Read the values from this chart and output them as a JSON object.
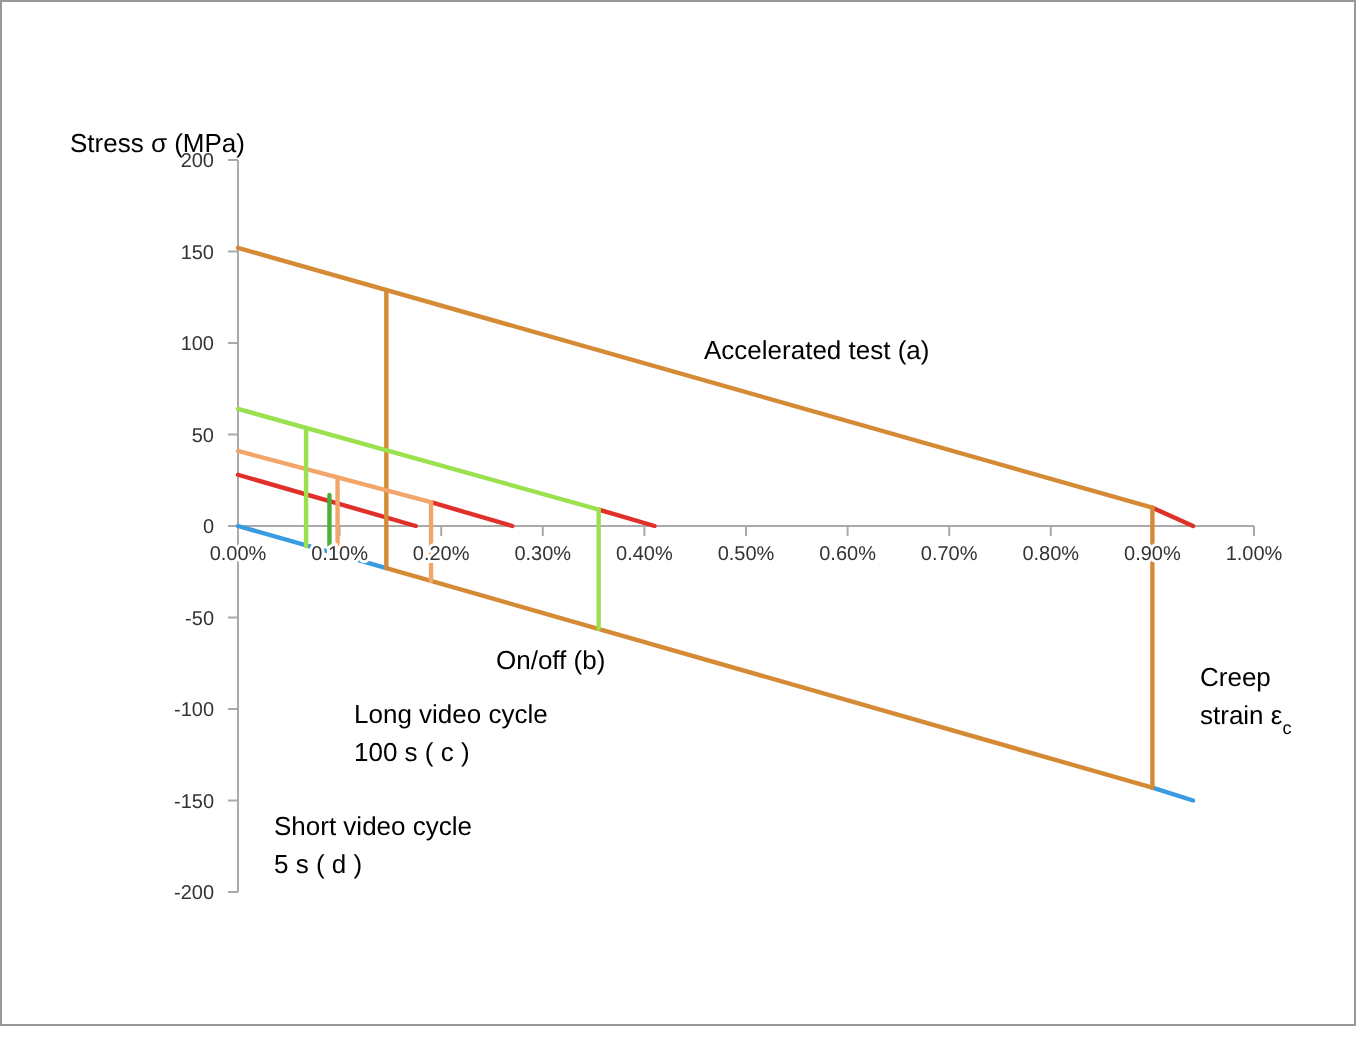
{
  "chart_data": {
    "type": "line",
    "ylabel": "Stress σ (MPa)",
    "xlabel": "Creep strain ε$_{c}$",
    "xlim": [
      0,
      1
    ],
    "ylim": [
      -200,
      200
    ],
    "xticks": [
      {
        "value": 0,
        "label": "0.00%"
      },
      {
        "value": 0.1,
        "label": "0.10%"
      },
      {
        "value": 0.2,
        "label": "0.20%"
      },
      {
        "value": 0.3,
        "label": "0.30%"
      },
      {
        "value": 0.4,
        "label": "0.40%"
      },
      {
        "value": 0.5,
        "label": "0.50%"
      },
      {
        "value": 0.6,
        "label": "0.60%"
      },
      {
        "value": 0.7,
        "label": "0.70%"
      },
      {
        "value": 0.8,
        "label": "0.80%"
      },
      {
        "value": 0.9,
        "label": "0.90%"
      },
      {
        "value": 1,
        "label": "1.00%"
      }
    ],
    "yticks": [
      -200,
      -150,
      -100,
      -50,
      0,
      50,
      100,
      150,
      200
    ],
    "grid": false,
    "line_style": "solid",
    "marker": "none",
    "series": [
      {
        "color": "#d58a35",
        "x": [
          0.146,
          0.9
        ],
        "values": [
          -23,
          -143
        ]
      },
      {
        "color": "#3a9be0",
        "x": [
          0,
          0.146
        ],
        "values": [
          0,
          -23
        ]
      },
      {
        "color": "#3a9be0",
        "x": [
          0.9,
          0.94
        ],
        "values": [
          -143,
          -150
        ]
      },
      {
        "color": "#e0302a",
        "x": [
          0,
          0.175
        ],
        "values": [
          28,
          0
        ]
      },
      {
        "color": "#e0302a",
        "x": [
          0.19,
          0.27
        ],
        "values": [
          13,
          0
        ]
      },
      {
        "color": "#e0302a",
        "x": [
          0.355,
          0.41
        ],
        "values": [
          9,
          0
        ]
      },
      {
        "color": "#e0302a",
        "x": [
          0.9,
          0.94
        ],
        "values": [
          10,
          0
        ]
      },
      {
        "color": "#d58a35",
        "x": [
          0,
          0.9
        ],
        "values": [
          152,
          10
        ]
      },
      {
        "color": "#d58a35",
        "x": [
          0.9,
          0.9
        ],
        "values": [
          10,
          -143
        ]
      },
      {
        "color": "#d58a35",
        "x": [
          0.146,
          0.146
        ],
        "values": [
          129,
          -23
        ]
      },
      {
        "color": "#f2a66a",
        "x": [
          0,
          0.19
        ],
        "values": [
          41,
          13
        ]
      },
      {
        "color": "#f2a66a",
        "x": [
          0.19,
          0.19
        ],
        "values": [
          13,
          -30
        ]
      },
      {
        "color": "#f2a66a",
        "x": [
          0.098,
          0.098
        ],
        "values": [
          26,
          -16
        ]
      },
      {
        "color": "#9be04f",
        "x": [
          0,
          0.355
        ],
        "values": [
          64,
          9
        ]
      },
      {
        "color": "#9be04f",
        "x": [
          0.355,
          0.355
        ],
        "values": [
          9,
          -56
        ]
      },
      {
        "color": "#9be04f",
        "x": [
          0.067,
          0.067
        ],
        "values": [
          52,
          -11
        ]
      },
      {
        "color": "#4caf3a",
        "x": [
          0.09,
          0.09
        ],
        "values": [
          -14,
          17
        ]
      }
    ],
    "annotations": [
      "Accelerated test (a)",
      "On/off (b)",
      "Long video cycle\n100 s ( c )",
      "Short video cycle\n5 s ( d )"
    ]
  }
}
